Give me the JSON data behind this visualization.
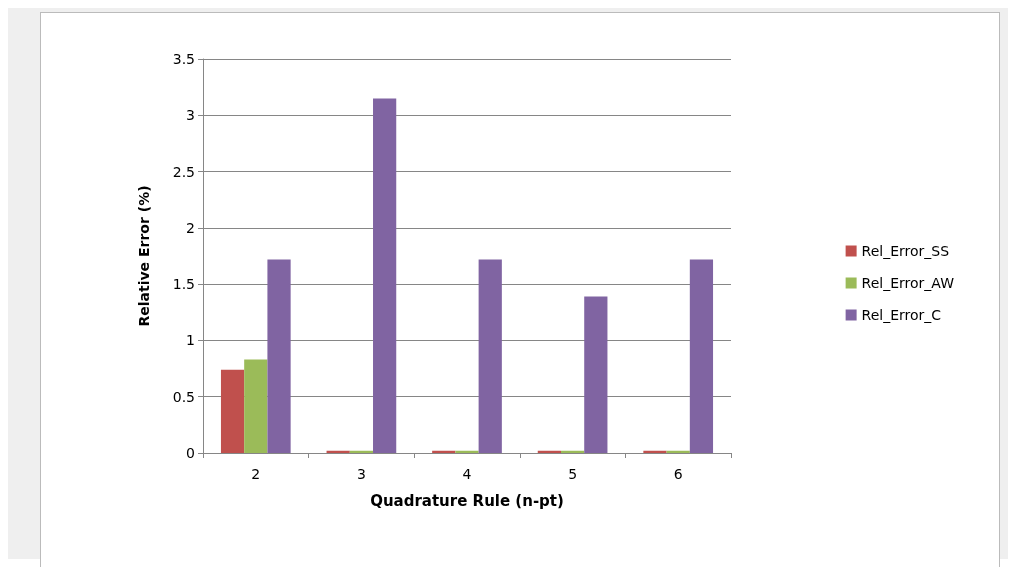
{
  "chart_data": {
    "type": "bar",
    "categories": [
      "2",
      "3",
      "4",
      "5",
      "6"
    ],
    "series": [
      {
        "name": "Rel_Error_SS",
        "color": "#c0504d",
        "values": [
          0.74,
          0.02,
          0.02,
          0.02,
          0.02
        ]
      },
      {
        "name": "Rel_Error_AW",
        "color": "#9bbb59",
        "values": [
          0.83,
          0.02,
          0.02,
          0.02,
          0.02
        ]
      },
      {
        "name": "Rel_Error_C",
        "color": "#8064a2",
        "values": [
          1.72,
          3.15,
          1.72,
          1.39,
          1.72
        ]
      }
    ],
    "xlabel": "Quadrature Rule (n-pt)",
    "ylabel": "Relative Error (%)",
    "ylim": [
      0,
      3.5
    ],
    "yticks": [
      0,
      0.5,
      1,
      1.5,
      2,
      2.5,
      3,
      3.5
    ],
    "grid": "y",
    "legend": "right"
  }
}
